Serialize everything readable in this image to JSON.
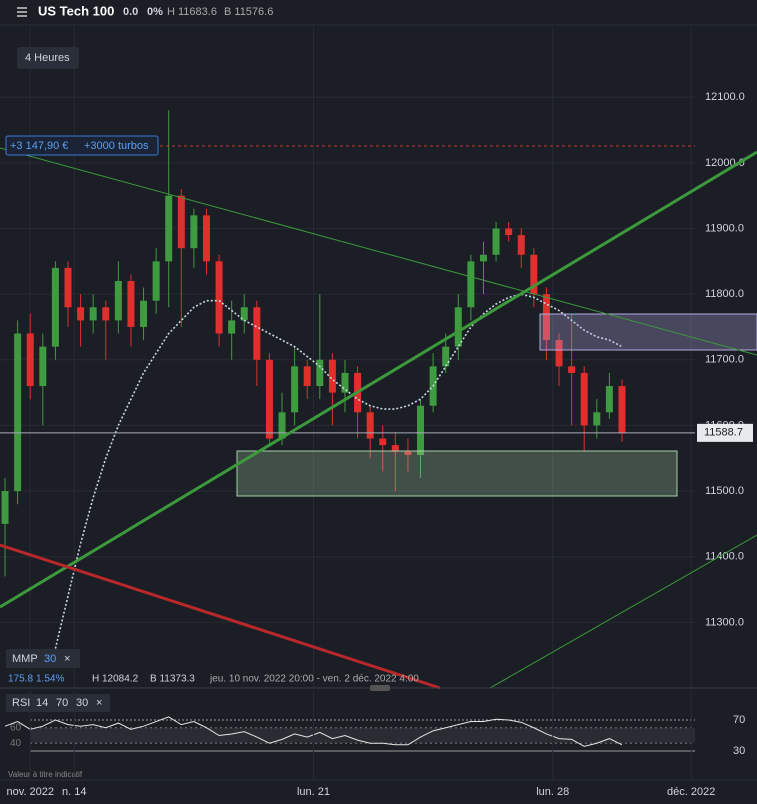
{
  "ui": {
    "symbol": "US Tech 100",
    "change": "0.0",
    "change_pct": "0%",
    "high": "H 11683.6",
    "low": "B 11576.6",
    "timeframe": "4 Heures",
    "position_pnl": "+3 147,90 €",
    "position_size": "+3000 turbos",
    "ma_name": "MMP",
    "ma_value": "175.8",
    "ma_pct": "1.54%",
    "range_high": "H 12084.2",
    "range_low": "B 11373.3",
    "range_dates": "jeu. 10 nov. 2022 20:00 - ven. 2 déc. 2022 4:00",
    "rsi_name": "RSI",
    "disclaimer": "Valeur à titre indicatif"
  },
  "chart_data": [
    {
      "type": "candlestick",
      "colors": {
        "up": "#3f9b3f",
        "down": "#e0302d"
      },
      "open": [
        11450,
        11500,
        11740,
        11660,
        11720,
        11840,
        11780,
        11760,
        11780,
        11760,
        11820,
        11750,
        11790,
        11850,
        11950,
        11870,
        11920,
        11850,
        11740,
        11760,
        11780,
        11700,
        11580,
        11620,
        11690,
        11660,
        11700,
        11650,
        11680,
        11620,
        11580,
        11570,
        11560,
        11555,
        11630,
        11690,
        11720,
        11780,
        11850,
        11860,
        11900,
        11890,
        11860,
        11800,
        11730,
        11690,
        11680,
        11600,
        11620,
        11660
      ],
      "high": [
        11520,
        11760,
        11770,
        11740,
        11850,
        11850,
        11800,
        11800,
        11790,
        11850,
        11830,
        11810,
        11870,
        12080,
        11960,
        11930,
        11930,
        11860,
        11790,
        11800,
        11790,
        11710,
        11650,
        11720,
        11700,
        11800,
        11710,
        11700,
        11690,
        11630,
        11600,
        11590,
        11580,
        11640,
        11710,
        11740,
        11800,
        11860,
        11880,
        11910,
        11910,
        11900,
        11870,
        11810,
        11740,
        11770,
        11690,
        11640,
        11680,
        11670
      ],
      "low": [
        11370,
        11480,
        11640,
        11600,
        11700,
        11750,
        11720,
        11740,
        11700,
        11740,
        11720,
        11730,
        11770,
        11780,
        11750,
        11840,
        11830,
        11720,
        11700,
        11740,
        11660,
        11570,
        11570,
        11600,
        11640,
        11640,
        11600,
        11620,
        11580,
        11550,
        11530,
        11500,
        11530,
        11520,
        11620,
        11680,
        11700,
        11760,
        11800,
        11850,
        11880,
        11840,
        11780,
        11700,
        11660,
        11600,
        11560,
        11580,
        11610,
        11575
      ],
      "close": [
        11500,
        11740,
        11660,
        11720,
        11840,
        11780,
        11760,
        11780,
        11760,
        11820,
        11750,
        11790,
        11850,
        11950,
        11870,
        11920,
        11850,
        11740,
        11760,
        11780,
        11700,
        11580,
        11620,
        11690,
        11660,
        11700,
        11650,
        11680,
        11620,
        11580,
        11570,
        11560,
        11555,
        11630,
        11690,
        11720,
        11780,
        11850,
        11860,
        11900,
        11890,
        11860,
        11800,
        11730,
        11690,
        11680,
        11600,
        11620,
        11660,
        11588.7
      ],
      "moving_average": {
        "period": 30,
        "color": "#c8d6e5",
        "values": [
          null,
          null,
          null,
          null,
          11260,
          11340,
          11420,
          11490,
          11550,
          11600,
          11640,
          11680,
          11710,
          11740,
          11760,
          11780,
          11790,
          11790,
          11775,
          11760,
          11750,
          11740,
          11730,
          11720,
          11705,
          11690,
          11670,
          11655,
          11640,
          11630,
          11625,
          11625,
          11630,
          11640,
          11660,
          11690,
          11720,
          11750,
          11770,
          11785,
          11795,
          11800,
          11795,
          11785,
          11775,
          11760,
          11745,
          11735,
          11730,
          11720
        ]
      },
      "last_price": 11588.7,
      "xlim": [
        -0.4,
        54.8
      ],
      "xticks": [
        {
          "value": 2,
          "label": "nov. 2022"
        },
        {
          "value": 5.5,
          "label": "n. 14"
        },
        {
          "value": 24.5,
          "label": "lun. 21"
        },
        {
          "value": 43.5,
          "label": "lun. 28"
        },
        {
          "value": 54.5,
          "label": "déc. 2022"
        }
      ],
      "ylim": [
        11200,
        12210
      ],
      "yticks": [
        {
          "value": 11300,
          "label": "11300.0"
        },
        {
          "value": 11400,
          "label": "11400.0"
        },
        {
          "value": 11500,
          "label": "11500.0"
        },
        {
          "value": 11600,
          "label": "11600.0"
        },
        {
          "value": 11700,
          "label": "11700.0"
        },
        {
          "value": 11800,
          "label": "11800.0"
        },
        {
          "value": 11900,
          "label": "11900.0"
        },
        {
          "value": 12000,
          "label": "12000.0"
        },
        {
          "value": 12100,
          "label": "12100.0"
        }
      ]
    },
    {
      "type": "line",
      "period": 14,
      "color": "#e6e6e6",
      "values": [
        62,
        68,
        58,
        62,
        70,
        64,
        62,
        64,
        60,
        66,
        58,
        62,
        68,
        74,
        64,
        68,
        60,
        50,
        52,
        55,
        48,
        40,
        45,
        52,
        48,
        54,
        46,
        50,
        44,
        40,
        40,
        38,
        38,
        48,
        56,
        60,
        64,
        68,
        68,
        71,
        70,
        67,
        60,
        52,
        46,
        45,
        36,
        40,
        46,
        38
      ],
      "xlim": [
        -0.4,
        54.8
      ],
      "ylim": [
        0,
        100
      ],
      "yticks": [
        70,
        30
      ],
      "band": [
        60,
        40
      ]
    }
  ]
}
